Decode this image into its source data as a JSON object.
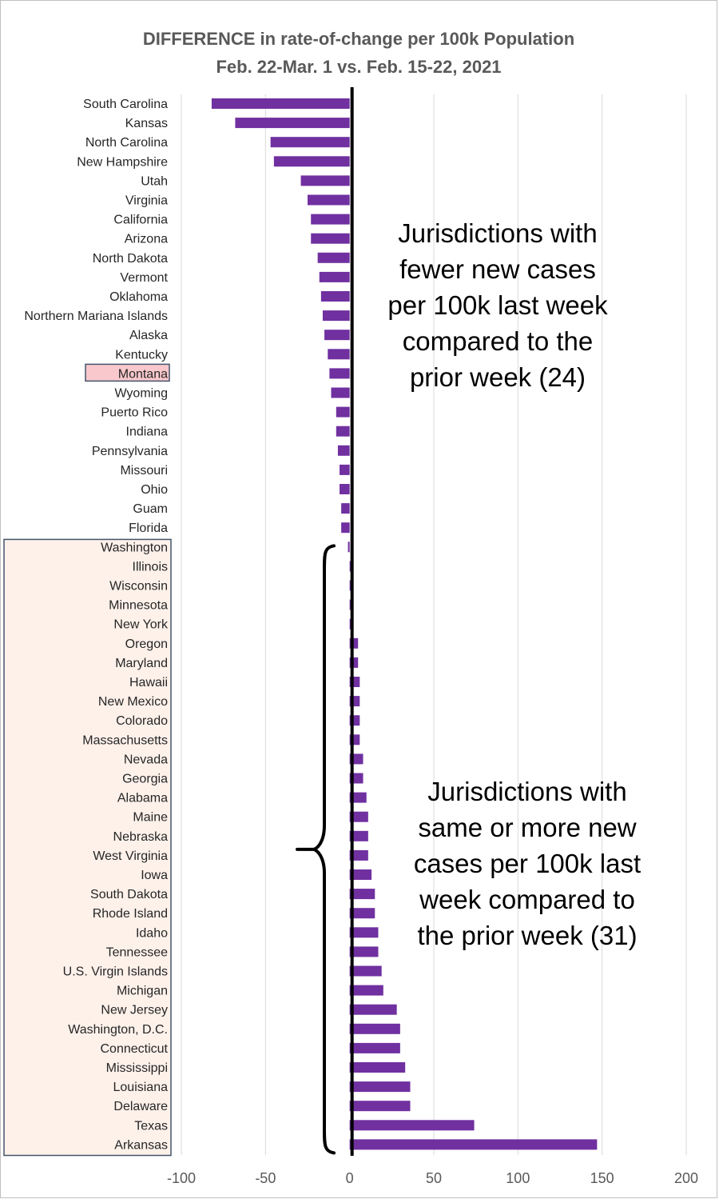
{
  "chart_data": {
    "type": "bar",
    "orientation": "horizontal",
    "title": "DIFFERENCE in rate-of-change per 100k Population",
    "subtitle": "Feb. 22-Mar. 1 vs. Feb. 15-22, 2021",
    "xlim": [
      -100,
      200
    ],
    "xticks": [
      -100,
      -50,
      0,
      50,
      100,
      150,
      200
    ],
    "grid": "vertical",
    "bar_color": "#7030a0",
    "categories": [
      "South Carolina",
      "Kansas",
      "North Carolina",
      "New Hampshire",
      "Utah",
      "Virginia",
      "California",
      "Arizona",
      "North Dakota",
      "Vermont",
      "Oklahoma",
      "Northern Mariana Islands",
      "Alaska",
      "Kentucky",
      "Montana",
      "Wyoming",
      "Puerto Rico",
      "Indiana",
      "Pennsylvania",
      "Missouri",
      "Ohio",
      "Guam",
      "Florida",
      "Washington",
      "Illinois",
      "Wisconsin",
      "Minnesota",
      "New York",
      "Oregon",
      "Maryland",
      "Hawaii",
      "New Mexico",
      "Colorado",
      "Massachusetts",
      "Nevada",
      "Georgia",
      "Alabama",
      "Maine",
      "Nebraska",
      "West Virginia",
      "Iowa",
      "South Dakota",
      "Rhode Island",
      "Idaho",
      "Tennessee",
      "U.S. Virgin Islands",
      "Michigan",
      "New Jersey",
      "Washington, D.C.",
      "Connecticut",
      "Mississippi",
      "Louisiana",
      "Delaware",
      "Texas",
      "Arkansas"
    ],
    "values": [
      -82,
      -68,
      -47,
      -45,
      -29,
      -25,
      -23,
      -23,
      -19,
      -18,
      -17,
      -16,
      -15,
      -13,
      -12,
      -11,
      -8,
      -8,
      -7,
      -6,
      -6,
      -5,
      -5,
      -1,
      0,
      0,
      0,
      1,
      5,
      5,
      6,
      6,
      6,
      6,
      8,
      8,
      10,
      11,
      11,
      11,
      13,
      15,
      15,
      17,
      17,
      19,
      20,
      28,
      30,
      30,
      33,
      36,
      36,
      74,
      147
    ],
    "highlighted_category": "Montana",
    "highlighted_group": {
      "from": "Illinois",
      "to": "Arkansas"
    },
    "annotations": [
      {
        "lines": [
          "Jurisdictions with",
          "fewer new cases",
          "per 100k last week",
          "compared to the",
          "prior week (24)"
        ]
      },
      {
        "lines": [
          "Jurisdictions with",
          "same or more new",
          "cases per 100k last",
          "week compared to",
          "the prior week (31)"
        ]
      }
    ]
  }
}
